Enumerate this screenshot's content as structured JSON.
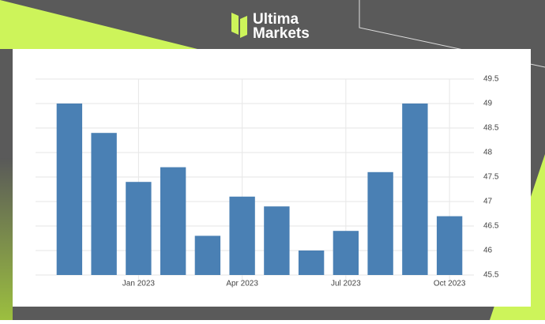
{
  "brand": {
    "line1": "Ultima",
    "line2": "Markets"
  },
  "chart_data": {
    "type": "bar",
    "categories": [
      null,
      null,
      "Jan 2023",
      null,
      null,
      "Apr 2023",
      null,
      null,
      "Jul 2023",
      null,
      null,
      "Oct 2023"
    ],
    "values": [
      49,
      48.4,
      47.4,
      47.7,
      46.3,
      47.1,
      46.9,
      46,
      46.4,
      47.6,
      49,
      46.7
    ],
    "color": "#4a80b4",
    "ylim": [
      45.5,
      49.5
    ],
    "yticks": [
      45.5,
      46,
      46.5,
      47,
      47.5,
      48,
      48.5,
      49,
      49.5
    ],
    "grid": true
  }
}
